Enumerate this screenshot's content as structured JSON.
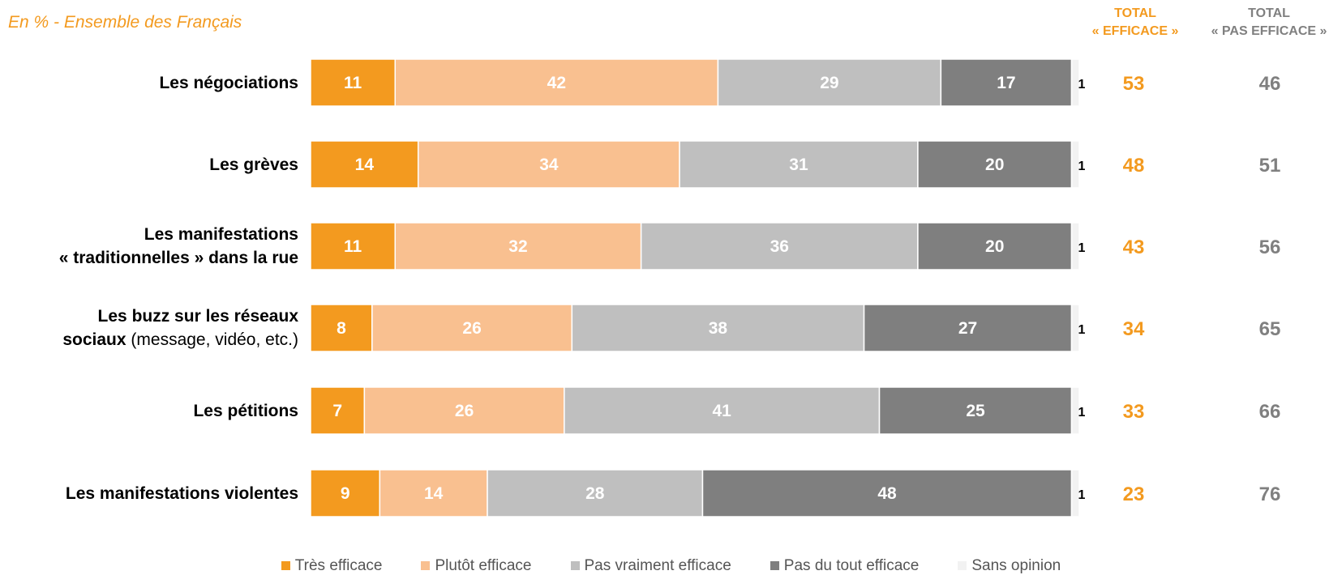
{
  "subtitle": "En % - Ensemble des Français",
  "columns": {
    "efficace": [
      "TOTAL",
      "« EFFICACE »"
    ],
    "pas_efficace": [
      "TOTAL",
      "« PAS EFFICACE »"
    ]
  },
  "colors": {
    "tres_efficace": "#f39a1f",
    "plutot_efficace": "#f9c090",
    "pas_vraiment": "#bfbfbf",
    "pas_du_tout": "#7f7f7f",
    "sans_opinion": "#f2f2f2",
    "total_efficace": "#f39a1f",
    "total_pas_efficace": "#808080"
  },
  "rows": [
    {
      "label_bold": [
        "Les négociations"
      ],
      "label_plain": ""
    },
    {
      "label_bold": [
        "Les grèves"
      ],
      "label_plain": ""
    },
    {
      "label_bold": [
        "Les manifestations",
        "« traditionnelles » dans la rue"
      ],
      "label_plain": ""
    },
    {
      "label_bold": [
        "Les buzz sur les réseaux",
        "sociaux"
      ],
      "label_plain": " (message, vidéo, etc.)"
    },
    {
      "label_bold": [
        "Les pétitions"
      ],
      "label_plain": ""
    },
    {
      "label_bold": [
        "Les manifestations violentes"
      ],
      "label_plain": ""
    }
  ],
  "chart_data": {
    "type": "bar",
    "orientation": "horizontal",
    "stacked": true,
    "categories": [
      "Les négociations",
      "Les grèves",
      "Les manifestations « traditionnelles » dans la rue",
      "Les buzz sur les réseaux sociaux (message, vidéo, etc.)",
      "Les pétitions",
      "Les manifestations violentes"
    ],
    "series": [
      {
        "name": "Très efficace",
        "values": [
          11,
          14,
          11,
          8,
          7,
          9
        ]
      },
      {
        "name": "Plutôt efficace",
        "values": [
          42,
          34,
          32,
          26,
          26,
          14
        ]
      },
      {
        "name": "Pas vraiment efficace",
        "values": [
          29,
          31,
          36,
          38,
          41,
          28
        ]
      },
      {
        "name": "Pas du tout efficace",
        "values": [
          17,
          20,
          20,
          27,
          25,
          48
        ]
      },
      {
        "name": "Sans opinion",
        "values": [
          1,
          1,
          1,
          1,
          1,
          1
        ]
      }
    ],
    "totals": {
      "efficace": [
        53,
        48,
        43,
        34,
        33,
        23
      ],
      "pas_efficace": [
        46,
        51,
        56,
        65,
        66,
        76
      ]
    },
    "xlim": [
      0,
      100
    ],
    "unit": "%",
    "legend_position": "bottom"
  }
}
